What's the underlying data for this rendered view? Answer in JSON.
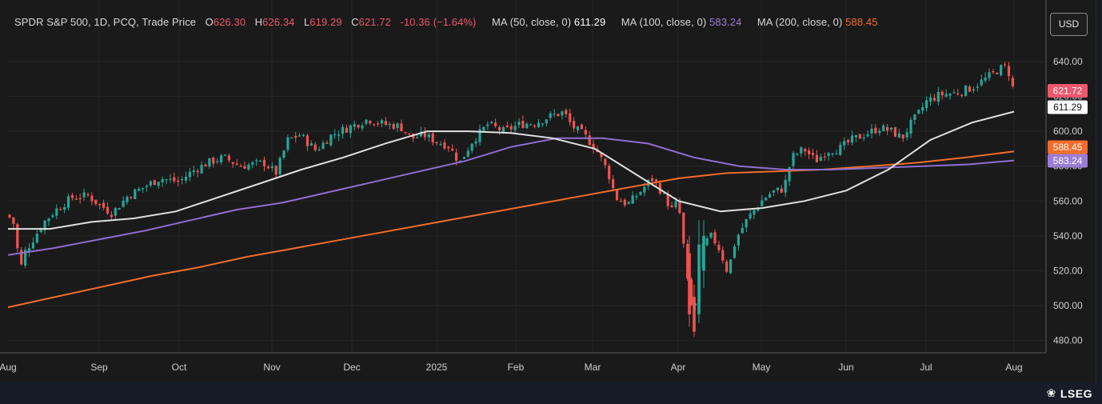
{
  "legend": {
    "symbol": "SPDR S&P 500, 1D, PCQ, Trade Price",
    "o_label": "O",
    "o_value": "626.30",
    "h_label": "H",
    "h_value": "626.34",
    "l_label": "L",
    "l_value": "619.29",
    "c_label": "C",
    "c_value": "621.72",
    "change": "-10.36 (−1.64%)",
    "ma50_label": "MA (50, close, 0)",
    "ma50_value": "611.29",
    "ma100_label": "MA (100, close, 0)",
    "ma100_value": "583.24",
    "ma200_label": "MA (200, close, 0)",
    "ma200_value": "588.45"
  },
  "currency_button": "USD",
  "brand": {
    "name": "LSEG",
    "icon": "lseg-logo-icon"
  },
  "colors": {
    "up": "#26a69a",
    "down": "#ef5350",
    "ma50": "#e0e0e0",
    "ma100": "#8e6fd0",
    "ma200": "#f26d2b",
    "background": "#1a1a1a"
  },
  "chart_data": {
    "type": "candlestick",
    "ylim": [
      465,
      650
    ],
    "yticks": [
      "640.00",
      "620.00",
      "600.00",
      "580.00",
      "560.00",
      "540.00",
      "520.00",
      "500.00",
      "480.00"
    ],
    "xlabels": [
      "Aug",
      "Sep",
      "Oct",
      "Nov",
      "Dec",
      "2025",
      "Feb",
      "Mar",
      "Apr",
      "May",
      "Jun",
      "Jul",
      "Aug"
    ],
    "price_tags": [
      {
        "label": "621.72",
        "value": 621.72,
        "color": "#f0566e"
      },
      {
        "label": "611.29",
        "value": 611.29,
        "color": "#ffffff"
      },
      {
        "label": "588.45",
        "value": 588.45,
        "color": "#f26d2b"
      },
      {
        "label": "583.24",
        "value": 583.24,
        "color": "#9b7dd6"
      }
    ],
    "key_points": [
      {
        "label": "Aug 2024 low",
        "close": 517
      },
      {
        "label": "Feb 2025 high",
        "close": 613
      },
      {
        "label": "Apr 2025 low",
        "low": 482
      },
      {
        "label": "late Jul 2025 high",
        "high": 639.5
      },
      {
        "label": "last close",
        "close": 621.72
      }
    ],
    "ma50": [
      544,
      544,
      548,
      550,
      554,
      562,
      570,
      578,
      585,
      593,
      600,
      600,
      599,
      596,
      590,
      575,
      560,
      554,
      556,
      560,
      566,
      578,
      595,
      605,
      611.29
    ],
    "ma100": [
      529,
      533,
      538,
      543,
      549,
      555,
      559,
      565,
      571,
      577,
      583,
      591,
      596,
      596,
      593,
      585,
      580,
      578,
      578,
      579,
      580,
      581,
      583.24
    ],
    "ma200": [
      499,
      505,
      511,
      517,
      522,
      528,
      533,
      538,
      543,
      548,
      553,
      558,
      563,
      568,
      573,
      576,
      577,
      578,
      580,
      582,
      585,
      588.45
    ]
  }
}
